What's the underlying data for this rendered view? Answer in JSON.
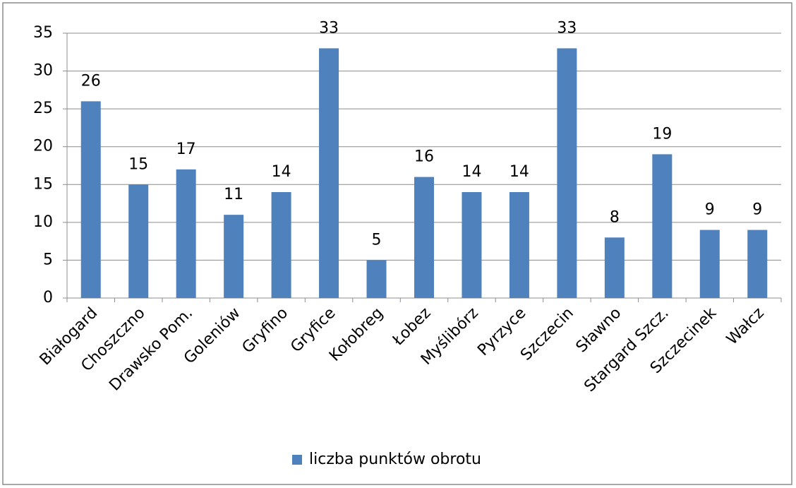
{
  "chart_data": {
    "type": "bar",
    "categories": [
      "Białogard",
      "Choszczno",
      "Drawsko Pom.",
      "Goleniów",
      "Gryfino",
      "Gryfice",
      "Kołobreg",
      "Łobez",
      "Myślibórz",
      "Pyrzyce",
      "Szczecin",
      "Sławno",
      "Stargard Szcz.",
      "Szczecinek",
      "Wałcz"
    ],
    "series": [
      {
        "name": "liczba punktów obrotu",
        "color": "#4f81bd",
        "values": [
          26,
          15,
          17,
          11,
          14,
          33,
          5,
          16,
          14,
          14,
          33,
          8,
          19,
          9,
          9
        ]
      }
    ],
    "ylim": [
      0,
      35
    ],
    "yticks": [
      0,
      5,
      10,
      15,
      20,
      25,
      30,
      35
    ],
    "grid": true,
    "legend": "bottom"
  }
}
